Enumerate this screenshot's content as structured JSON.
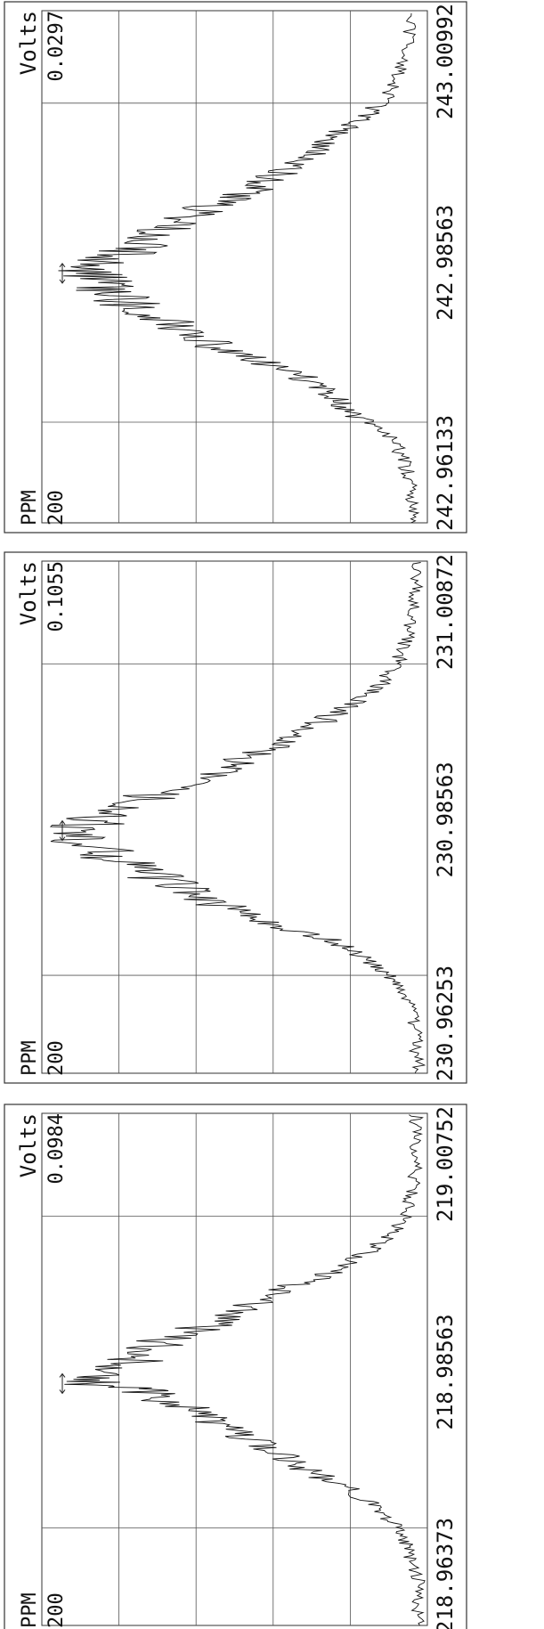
{
  "chart_data": [
    {
      "type": "line",
      "ylabel": "PPM",
      "y_scale": "200",
      "signal_label": "Volts",
      "signal_value": "0.0984",
      "x_ticks": [
        "218.96373",
        "218.98563",
        "219.00752"
      ],
      "xlim": [
        218.95,
        219.022
      ],
      "ylim": [
        0,
        100
      ],
      "vertical_grid_x": [
        218.96373,
        219.00752
      ],
      "marker_x": 218.984,
      "grid": true,
      "series": [
        {
          "x": [
            218.95,
            218.953,
            218.956,
            218.959,
            218.961,
            218.963,
            218.965,
            218.967,
            218.969,
            218.971,
            218.973,
            218.975,
            218.977,
            218.979,
            218.981,
            218.983,
            218.984,
            218.985,
            218.987,
            218.989,
            218.991,
            218.993,
            218.995,
            218.997,
            218.999,
            219.001,
            219.003,
            219.005,
            219.007,
            219.009,
            219.011,
            219.014,
            219.017,
            219.02,
            219.022
          ],
          "y": [
            2,
            3,
            2,
            4,
            5,
            7,
            10,
            14,
            20,
            28,
            35,
            42,
            50,
            58,
            65,
            74,
            88,
            82,
            76,
            72,
            64,
            52,
            46,
            40,
            28,
            20,
            14,
            9,
            6,
            5,
            4,
            3,
            4,
            3,
            3
          ]
        }
      ]
    },
    {
      "type": "line",
      "ylabel": "PPM",
      "y_scale": "200",
      "signal_label": "Volts",
      "signal_value": "0.1055",
      "x_ticks": [
        "230.96253",
        "230.98563",
        "231.00872"
      ],
      "xlim": [
        230.948,
        231.024
      ],
      "ylim": [
        0,
        100
      ],
      "vertical_grid_x": [
        230.96253,
        231.00872
      ],
      "marker_x": 230.984,
      "grid": true,
      "series": [
        {
          "x": [
            230.948,
            230.951,
            230.954,
            230.957,
            230.96,
            230.962,
            230.964,
            230.966,
            230.968,
            230.97,
            230.972,
            230.974,
            230.976,
            230.978,
            230.98,
            230.982,
            230.984,
            230.986,
            230.988,
            230.99,
            230.992,
            230.994,
            230.996,
            230.998,
            231.0,
            231.002,
            231.004,
            231.006,
            231.008,
            231.01,
            231.013,
            231.016,
            231.019,
            231.022,
            231.024
          ],
          "y": [
            2,
            3,
            3,
            4,
            6,
            9,
            14,
            20,
            26,
            40,
            50,
            58,
            66,
            74,
            82,
            88,
            92,
            84,
            76,
            68,
            58,
            50,
            42,
            34,
            28,
            22,
            16,
            12,
            9,
            7,
            5,
            4,
            3,
            3,
            3
          ]
        }
      ]
    },
    {
      "type": "line",
      "ylabel": "PPM",
      "y_scale": "200",
      "signal_label": "Volts",
      "signal_value": "0.0297",
      "x_ticks": [
        "242.96133",
        "242.98563",
        "243.00992"
      ],
      "xlim": [
        242.946,
        243.024
      ],
      "ylim": [
        0,
        100
      ],
      "vertical_grid_x": [
        242.96133,
        243.00992
      ],
      "marker_x": 242.984,
      "grid": true,
      "series": [
        {
          "x": [
            242.946,
            242.949,
            242.952,
            242.955,
            242.958,
            242.96,
            242.962,
            242.964,
            242.966,
            242.968,
            242.97,
            242.972,
            242.974,
            242.976,
            242.978,
            242.98,
            242.982,
            242.984,
            242.986,
            242.988,
            242.99,
            242.992,
            242.994,
            242.996,
            242.998,
            243.0,
            243.002,
            243.004,
            243.006,
            243.008,
            243.01,
            243.013,
            243.016,
            243.02,
            243.024
          ],
          "y": [
            3,
            4,
            4,
            6,
            8,
            12,
            18,
            22,
            26,
            32,
            40,
            52,
            58,
            66,
            72,
            80,
            84,
            88,
            82,
            76,
            70,
            64,
            58,
            48,
            42,
            36,
            30,
            26,
            22,
            16,
            12,
            8,
            6,
            5,
            4
          ]
        }
      ]
    }
  ]
}
